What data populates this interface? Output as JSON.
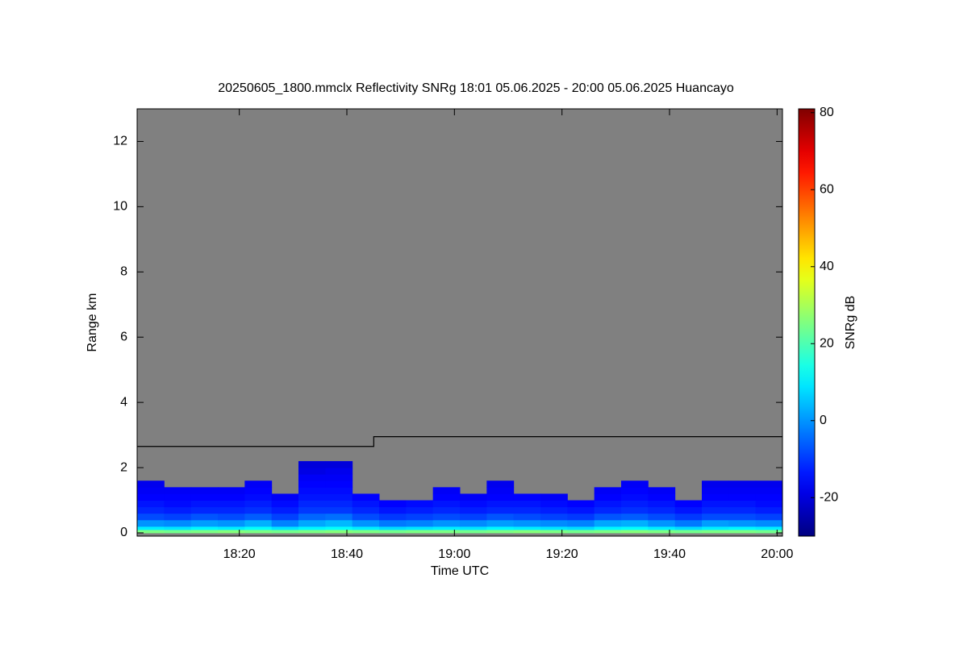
{
  "chart_data": {
    "type": "heatmap",
    "title": "20250605_1800.mmclx Reflectivity SNRg   18:01 05.06.2025 - 20:00 05.06.2025 Huancayo",
    "x_label": "Time UTC",
    "y_label": "Range km",
    "colorbar_label": "SNRg dB",
    "colormap": "jet",
    "background": "#808080",
    "xlim": [
      "18:01",
      "20:01"
    ],
    "xticks": [
      "18:20",
      "18:40",
      "19:00",
      "19:20",
      "19:40",
      "20:00"
    ],
    "ylim": [
      -0.1,
      13
    ],
    "yticks": [
      0,
      2,
      4,
      6,
      8,
      10,
      12
    ],
    "clim": [
      -30,
      81
    ],
    "cticks": [
      -20,
      0,
      20,
      40,
      60,
      80
    ],
    "x_edges": [
      "18:01",
      "18:06",
      "18:11",
      "18:16",
      "18:21",
      "18:26",
      "18:31",
      "18:36",
      "18:41",
      "18:46",
      "18:51",
      "18:56",
      "19:01",
      "19:06",
      "19:11",
      "19:16",
      "19:21",
      "19:26",
      "19:31",
      "19:36",
      "19:41",
      "19:46",
      "19:51",
      "19:56",
      "20:01"
    ],
    "y_edges": [
      0,
      0.1,
      0.2,
      0.4,
      0.6,
      0.8,
      1.0,
      1.2,
      1.4,
      1.6,
      1.8,
      2.0,
      2.2
    ],
    "z": [
      [
        25,
        24,
        25,
        26,
        25,
        24,
        25,
        26,
        25,
        24,
        25,
        25,
        24,
        25,
        26,
        25,
        24,
        25,
        26,
        25,
        24,
        25,
        25,
        24
      ],
      [
        10,
        9,
        11,
        10,
        12,
        9,
        11,
        12,
        10,
        8,
        9,
        10,
        9,
        11,
        10,
        9,
        8,
        11,
        12,
        10,
        8,
        10,
        11,
        10
      ],
      [
        0,
        -1,
        1,
        0,
        3,
        -2,
        2,
        4,
        0,
        -3,
        -2,
        0,
        -1,
        1,
        0,
        -1,
        -2,
        2,
        3,
        0,
        -3,
        1,
        0,
        -1
      ],
      [
        -8,
        -9,
        -7,
        -8,
        -6,
        -9,
        -5,
        -4,
        -8,
        -10,
        -9,
        -8,
        -9,
        -7,
        -8,
        -9,
        -10,
        -7,
        -6,
        -8,
        -10,
        -8,
        -8,
        -9
      ],
      [
        -12,
        -13,
        -12,
        -12,
        -11,
        -13,
        -10,
        -10,
        -12,
        -14,
        -13,
        -12,
        -13,
        -12,
        -12,
        -13,
        -14,
        -12,
        -11,
        -12,
        -14,
        -12,
        -12,
        -13
      ],
      [
        -14,
        -15,
        -14,
        -14,
        -13,
        -15,
        -12,
        -12,
        -14,
        -16,
        -15,
        -14,
        -15,
        -14,
        -14,
        -15,
        -16,
        -14,
        -13,
        -14,
        -16,
        -14,
        -14,
        -15
      ],
      [
        -16,
        -16,
        -16,
        -16,
        -15,
        -17,
        -14,
        -14,
        -16,
        null,
        null,
        -16,
        -17,
        -16,
        -16,
        -17,
        null,
        -16,
        -15,
        -16,
        null,
        -16,
        -16,
        -16
      ],
      [
        -17,
        -17,
        -17,
        -17,
        -16,
        null,
        -15,
        -15,
        null,
        null,
        null,
        -17,
        null,
        -17,
        null,
        null,
        null,
        -17,
        -16,
        -17,
        null,
        -17,
        -17,
        -17
      ],
      [
        -18,
        null,
        null,
        null,
        -17,
        null,
        -16,
        -16,
        null,
        null,
        null,
        null,
        null,
        -18,
        null,
        null,
        null,
        null,
        -17,
        null,
        null,
        -18,
        -18,
        -18
      ],
      [
        null,
        null,
        null,
        null,
        null,
        null,
        -17,
        -17,
        null,
        null,
        null,
        null,
        null,
        null,
        null,
        null,
        null,
        null,
        null,
        null,
        null,
        null,
        null,
        null
      ],
      [
        null,
        null,
        null,
        null,
        null,
        null,
        -19,
        -18,
        null,
        null,
        null,
        null,
        null,
        null,
        null,
        null,
        null,
        null,
        null,
        null,
        null,
        null,
        null,
        null
      ],
      [
        null,
        null,
        null,
        null,
        null,
        null,
        -20,
        -20,
        null,
        null,
        null,
        null,
        null,
        null,
        null,
        null,
        null,
        null,
        null,
        null,
        null,
        null,
        null,
        null
      ]
    ],
    "boundary": {
      "color": "#000000",
      "x": [
        "18:01",
        "18:45",
        "18:45",
        "20:01"
      ],
      "values": [
        2.65,
        2.65,
        2.95,
        2.95
      ]
    }
  }
}
